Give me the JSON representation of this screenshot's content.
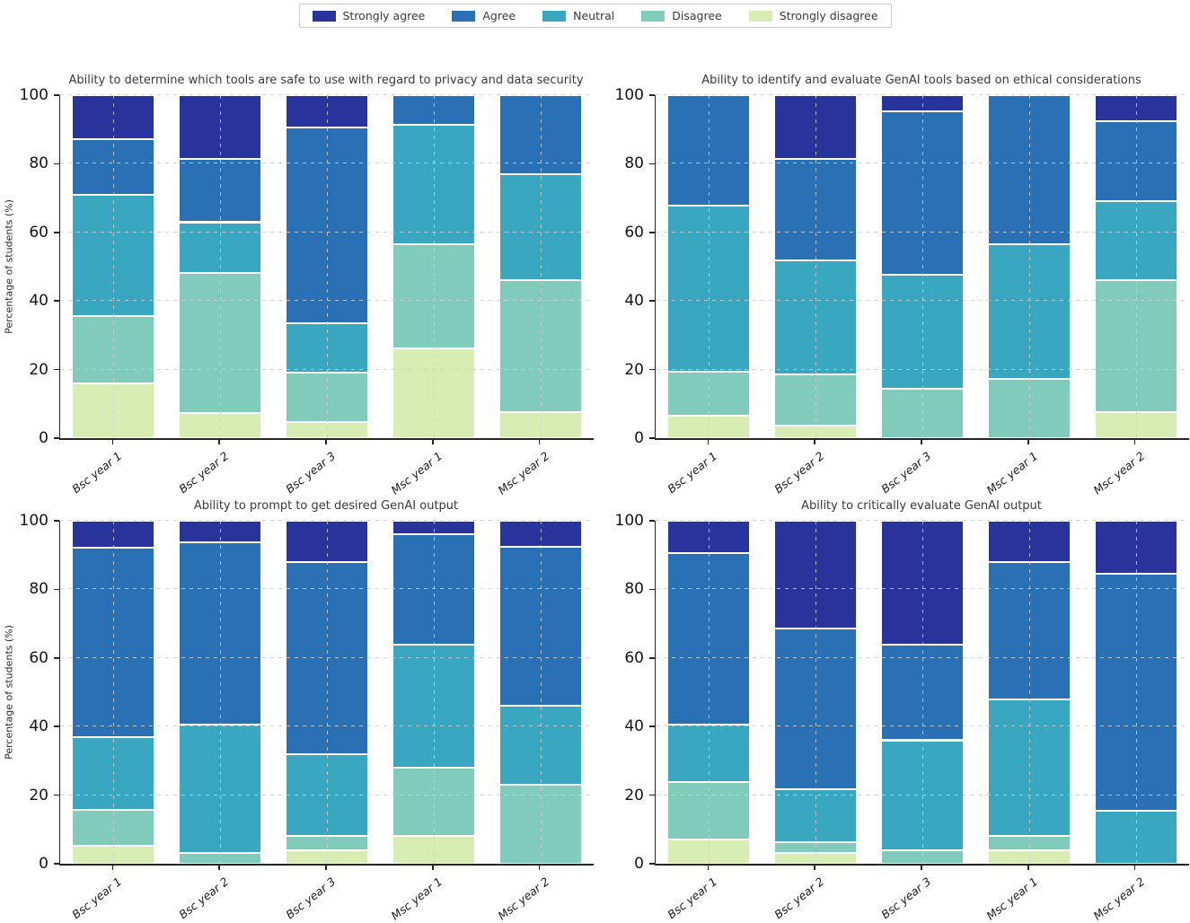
{
  "legend": {
    "items": [
      {
        "label": "Strongly agree",
        "color": "#28349B"
      },
      {
        "label": "Agree",
        "color": "#2A70B4"
      },
      {
        "label": "Neutral",
        "color": "#39A7C0"
      },
      {
        "label": "Disagree",
        "color": "#80CBB9"
      },
      {
        "label": "Strongly disagree",
        "color": "#D8EDB4"
      }
    ]
  },
  "axes": {
    "yticks": [
      0,
      20,
      40,
      60,
      80,
      100
    ],
    "ylim": [
      0,
      100
    ],
    "grid": "dashed, drawn above bars",
    "legend_position": "top center"
  },
  "chart_data": [
    {
      "type": "bar",
      "stacked": true,
      "title": "Ability to determine which tools are safe to use with regard to privacy and data security",
      "ylabel": "Percentage of students (%)",
      "ylim": [
        0,
        100
      ],
      "categories": [
        "Bsc year 1",
        "Bsc year 2",
        "Bsc year 3",
        "Msc year 1",
        "Msc year 2"
      ],
      "series": [
        {
          "name": "Strongly agree",
          "values": [
            12.9,
            18.5,
            9.5,
            0.0,
            0.0
          ]
        },
        {
          "name": "Agree",
          "values": [
            16.1,
            18.5,
            57.1,
            8.7,
            23.1
          ]
        },
        {
          "name": "Neutral",
          "values": [
            35.5,
            14.8,
            14.3,
            34.8,
            30.8
          ]
        },
        {
          "name": "Disagree",
          "values": [
            19.4,
            40.7,
            14.3,
            30.4,
            38.5
          ]
        },
        {
          "name": "Strongly disagree",
          "values": [
            16.1,
            7.4,
            4.8,
            26.1,
            7.7
          ]
        }
      ]
    },
    {
      "type": "bar",
      "stacked": true,
      "title": "Ability to identify and evaluate GenAI tools based on ethical considerations",
      "ylim": [
        0,
        100
      ],
      "categories": [
        "Bsc year 1",
        "Bsc year 2",
        "Bsc year 3",
        "Msc year 1",
        "Msc year 2"
      ],
      "series": [
        {
          "name": "Strongly agree",
          "values": [
            0.0,
            18.5,
            4.8,
            0.0,
            7.7
          ]
        },
        {
          "name": "Agree",
          "values": [
            32.3,
            29.6,
            47.6,
            43.5,
            23.1
          ]
        },
        {
          "name": "Neutral",
          "values": [
            48.4,
            33.3,
            33.3,
            39.1,
            23.1
          ]
        },
        {
          "name": "Disagree",
          "values": [
            12.9,
            14.8,
            14.3,
            17.4,
            38.5
          ]
        },
        {
          "name": "Strongly disagree",
          "values": [
            6.5,
            3.7,
            0.0,
            0.0,
            7.7
          ]
        }
      ]
    },
    {
      "type": "bar",
      "stacked": true,
      "title": "Ability to prompt to get desired GenAI output",
      "ylabel": "Percentage of students (%)",
      "ylim": [
        0,
        100
      ],
      "categories": [
        "Bsc year 1",
        "Bsc year 2",
        "Bsc year 3",
        "Msc year 1",
        "Msc year 2"
      ],
      "series": [
        {
          "name": "Strongly agree",
          "values": [
            7.9,
            6.3,
            12.0,
            4.0,
            7.7
          ]
        },
        {
          "name": "Agree",
          "values": [
            55.3,
            53.1,
            56.0,
            32.0,
            46.2
          ]
        },
        {
          "name": "Neutral",
          "values": [
            21.1,
            37.5,
            24.0,
            36.0,
            23.1
          ]
        },
        {
          "name": "Disagree",
          "values": [
            10.5,
            3.1,
            4.0,
            20.0,
            23.1
          ]
        },
        {
          "name": "Strongly disagree",
          "values": [
            5.3,
            0.0,
            4.0,
            8.0,
            0.0
          ]
        }
      ]
    },
    {
      "type": "bar",
      "stacked": true,
      "title": "Ability to critically evaluate GenAI output",
      "ylim": [
        0,
        100
      ],
      "categories": [
        "Bsc year 1",
        "Bsc year 2",
        "Bsc year 3",
        "Msc year 1",
        "Msc year 2"
      ],
      "series": [
        {
          "name": "Strongly agree",
          "values": [
            9.5,
            31.3,
            36.0,
            12.0,
            15.4
          ]
        },
        {
          "name": "Agree",
          "values": [
            50.0,
            46.9,
            28.0,
            40.0,
            69.2
          ]
        },
        {
          "name": "Neutral",
          "values": [
            16.7,
            15.6,
            32.0,
            40.0,
            15.4
          ]
        },
        {
          "name": "Disagree",
          "values": [
            16.7,
            3.1,
            4.0,
            4.0,
            0.0
          ]
        },
        {
          "name": "Strongly disagree",
          "values": [
            7.1,
            3.1,
            0.0,
            4.0,
            0.0
          ]
        }
      ]
    }
  ]
}
